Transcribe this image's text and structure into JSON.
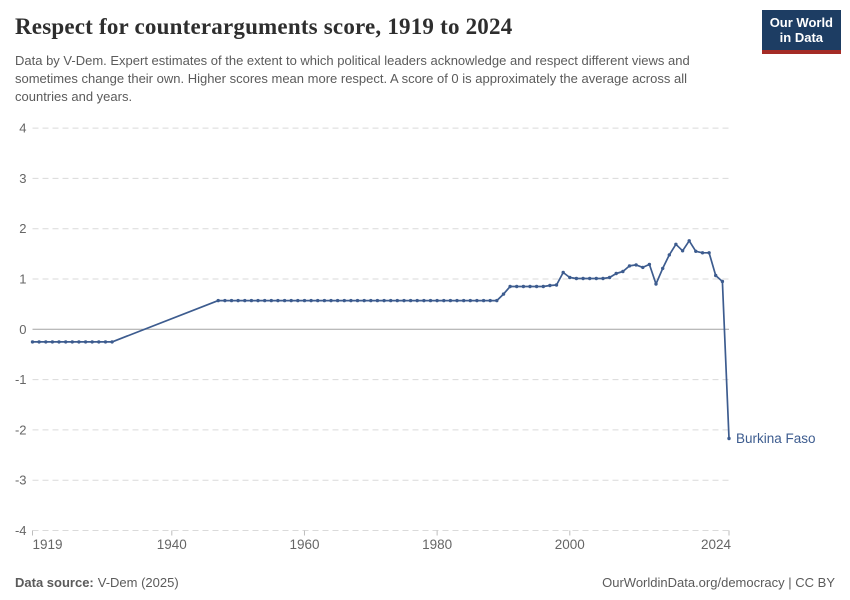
{
  "header": {
    "title": "Respect for counterarguments score, 1919 to 2024",
    "subtitle": "Data by V-Dem. Expert estimates of the extent to which political leaders acknowledge and respect different views and sometimes change their own. Higher scores mean more respect. A score of 0 is approximately the average across all countries and years.",
    "logo": {
      "line1": "Our World",
      "line2": "in Data"
    }
  },
  "colors": {
    "line": "#3d5c8f",
    "logo_bg": "#1d3d63",
    "logo_accent": "#a42b26",
    "grid": "#dadada",
    "zero_line": "#a3a3a3",
    "tick_text": "#666666",
    "muted_text": "#5b5b5b"
  },
  "chart_data": {
    "type": "line",
    "title": "Respect for counterarguments score, 1919 to 2024",
    "xlabel": "",
    "ylabel": "",
    "xlim": [
      1919,
      2024
    ],
    "ylim": [
      -4,
      4
    ],
    "yticks": [
      4,
      3,
      2,
      1,
      0,
      -1,
      -2,
      -3,
      -4
    ],
    "xticks": [
      1919,
      1940,
      1960,
      1980,
      2000,
      2024
    ],
    "grid": "dashed-horizontal",
    "legend_position": "end-of-line-label",
    "series": [
      {
        "name": "Burkina Faso",
        "color": "#3d5c8f",
        "note_gap_years": "no data 1932-1946, line interpolated without markers",
        "points": [
          [
            1919,
            -0.25
          ],
          [
            1920,
            -0.25
          ],
          [
            1921,
            -0.25
          ],
          [
            1922,
            -0.25
          ],
          [
            1923,
            -0.25
          ],
          [
            1924,
            -0.25
          ],
          [
            1925,
            -0.25
          ],
          [
            1926,
            -0.25
          ],
          [
            1927,
            -0.25
          ],
          [
            1928,
            -0.25
          ],
          [
            1929,
            -0.25
          ],
          [
            1930,
            -0.25
          ],
          [
            1931,
            -0.25
          ],
          [
            1947,
            0.57
          ],
          [
            1948,
            0.57
          ],
          [
            1949,
            0.57
          ],
          [
            1950,
            0.57
          ],
          [
            1951,
            0.57
          ],
          [
            1952,
            0.57
          ],
          [
            1953,
            0.57
          ],
          [
            1954,
            0.57
          ],
          [
            1955,
            0.57
          ],
          [
            1956,
            0.57
          ],
          [
            1957,
            0.57
          ],
          [
            1958,
            0.57
          ],
          [
            1959,
            0.57
          ],
          [
            1960,
            0.57
          ],
          [
            1961,
            0.57
          ],
          [
            1962,
            0.57
          ],
          [
            1963,
            0.57
          ],
          [
            1964,
            0.57
          ],
          [
            1965,
            0.57
          ],
          [
            1966,
            0.57
          ],
          [
            1967,
            0.57
          ],
          [
            1968,
            0.57
          ],
          [
            1969,
            0.57
          ],
          [
            1970,
            0.57
          ],
          [
            1971,
            0.57
          ],
          [
            1972,
            0.57
          ],
          [
            1973,
            0.57
          ],
          [
            1974,
            0.57
          ],
          [
            1975,
            0.57
          ],
          [
            1976,
            0.57
          ],
          [
            1977,
            0.57
          ],
          [
            1978,
            0.57
          ],
          [
            1979,
            0.57
          ],
          [
            1980,
            0.57
          ],
          [
            1981,
            0.57
          ],
          [
            1982,
            0.57
          ],
          [
            1983,
            0.57
          ],
          [
            1984,
            0.57
          ],
          [
            1985,
            0.57
          ],
          [
            1986,
            0.57
          ],
          [
            1987,
            0.57
          ],
          [
            1988,
            0.57
          ],
          [
            1989,
            0.57
          ],
          [
            1990,
            0.7
          ],
          [
            1991,
            0.85
          ],
          [
            1992,
            0.85
          ],
          [
            1993,
            0.85
          ],
          [
            1994,
            0.85
          ],
          [
            1995,
            0.85
          ],
          [
            1996,
            0.85
          ],
          [
            1997,
            0.87
          ],
          [
            1998,
            0.88
          ],
          [
            1999,
            1.13
          ],
          [
            2000,
            1.03
          ],
          [
            2001,
            1.01
          ],
          [
            2002,
            1.01
          ],
          [
            2003,
            1.01
          ],
          [
            2004,
            1.01
          ],
          [
            2005,
            1.01
          ],
          [
            2006,
            1.03
          ],
          [
            2007,
            1.11
          ],
          [
            2008,
            1.15
          ],
          [
            2009,
            1.26
          ],
          [
            2010,
            1.28
          ],
          [
            2011,
            1.23
          ],
          [
            2012,
            1.29
          ],
          [
            2013,
            0.9
          ],
          [
            2014,
            1.21
          ],
          [
            2015,
            1.48
          ],
          [
            2016,
            1.69
          ],
          [
            2017,
            1.56
          ],
          [
            2018,
            1.76
          ],
          [
            2019,
            1.55
          ],
          [
            2020,
            1.52
          ],
          [
            2021,
            1.52
          ],
          [
            2022,
            1.07
          ],
          [
            2023,
            0.95
          ],
          [
            2024,
            -2.17
          ]
        ]
      }
    ]
  },
  "footer": {
    "source_label": "Data source:",
    "source_value": "V-Dem (2025)",
    "credit": "OurWorldinData.org/democracy | CC BY"
  }
}
